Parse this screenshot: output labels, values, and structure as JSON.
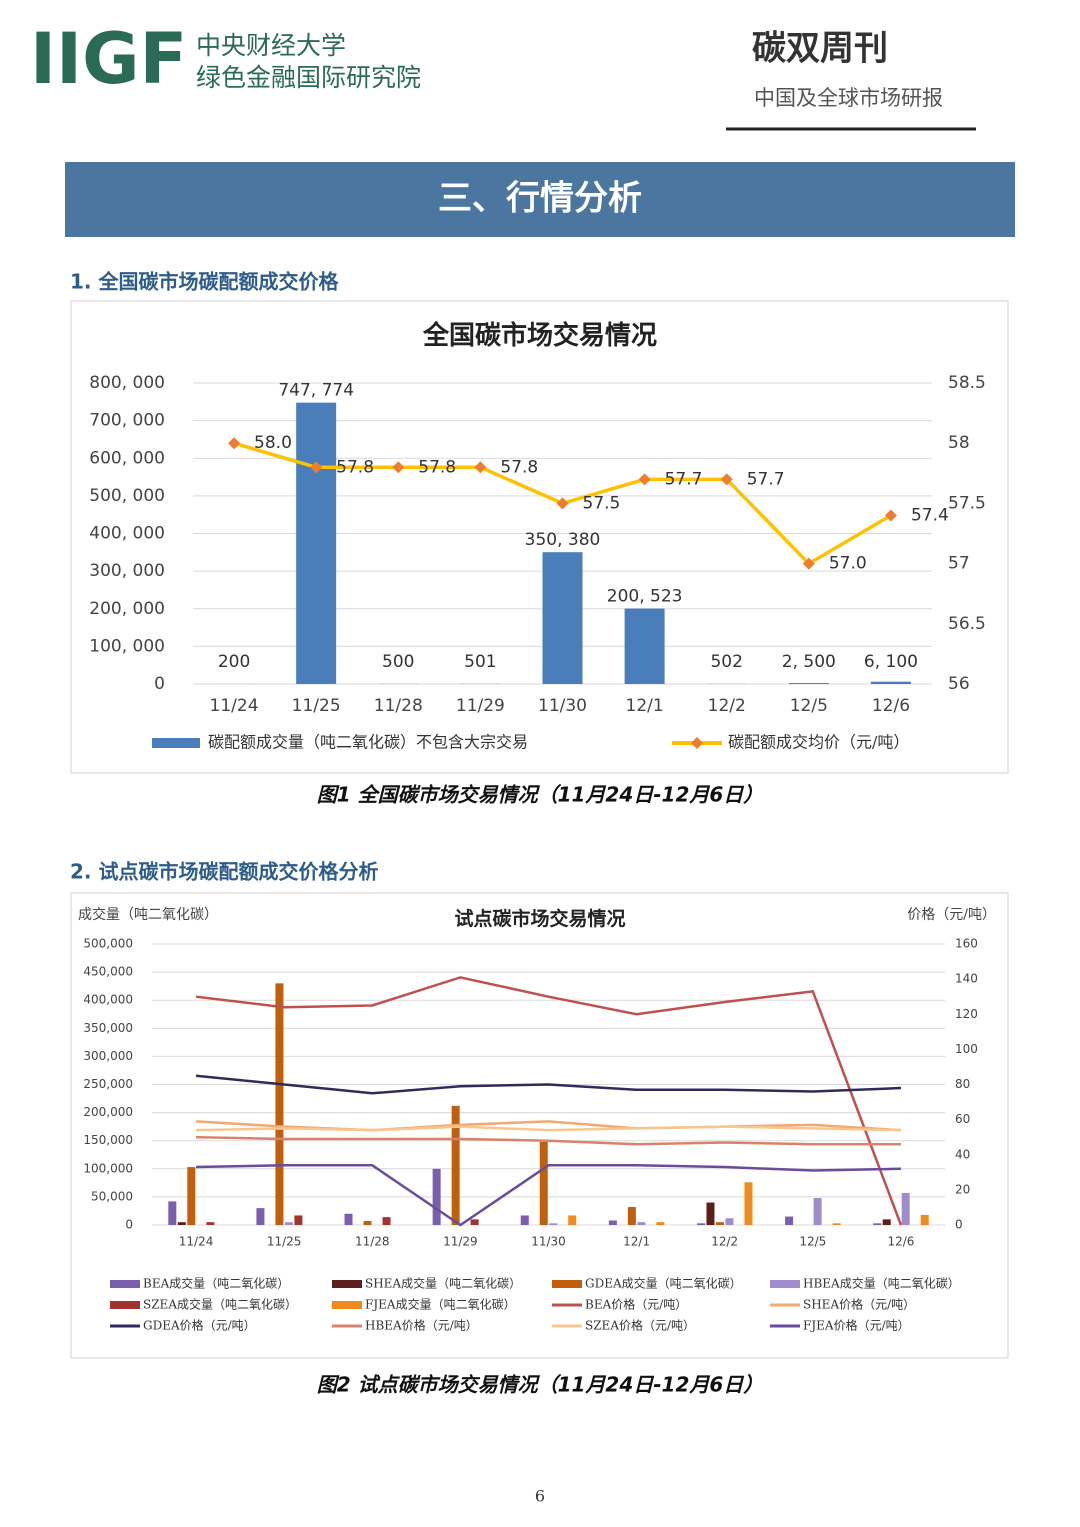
{
  "header": {
    "logo": "IIGF",
    "org_line1": "中央财经大学",
    "org_line2": "绿色金融国际研究院",
    "pub_title": "碳双周刊",
    "pub_subtitle": "中国及全球市场研报"
  },
  "section": {
    "title": "三、行情分析",
    "sub1": "1. 全国碳市场碳配额成交价格",
    "caption1": "图1 全国碳市场交易情况（11月24日-12月6日）",
    "sub2": "2. 试点碳市场碳配额成交价格分析",
    "caption2": "图2 试点碳市场交易情况（11月24日-12月6日）"
  },
  "page_number": "6",
  "chart_data": [
    {
      "type": "combo",
      "title": "全国碳市场交易情况",
      "categories": [
        "11/24",
        "11/25",
        "11/28",
        "11/29",
        "11/30",
        "12/1",
        "12/2",
        "12/5",
        "12/6"
      ],
      "series": [
        {
          "name": "碳配额成交量（吨二氧化碳）不包含大宗交易",
          "type": "bar",
          "color": "#4a7ebb",
          "values": [
            200,
            747774,
            500,
            501,
            350380,
            200523,
            502,
            2500,
            6100
          ],
          "value_labels": [
            "200",
            "747, 774",
            "500",
            "501",
            "350, 380",
            "200, 523",
            "502",
            "2, 500",
            "6, 100"
          ]
        },
        {
          "name": "碳配额成交均价（元/吨）",
          "type": "line",
          "axis": "y2",
          "color": "#ffc000",
          "marker_color": "#ed7d31",
          "values": [
            58.0,
            57.8,
            57.8,
            57.8,
            57.5,
            57.7,
            57.7,
            57.0,
            57.4
          ],
          "value_labels": [
            "58.0",
            "57.8",
            "57.8",
            "57.8",
            "57.5",
            "57.7",
            "57.7",
            "57.0",
            "57.4"
          ]
        }
      ],
      "ylim": [
        0,
        800000
      ],
      "yticks": [
        0,
        {
          "value": 100000,
          "label": "100, 000"
        },
        {
          "value": 200000,
          "label": "200, 000"
        },
        {
          "value": 300000,
          "label": "300, 000"
        },
        {
          "value": 400000,
          "label": "400, 000"
        },
        {
          "value": 500000,
          "label": "500, 000"
        },
        {
          "value": 600000,
          "label": "600, 000"
        },
        {
          "value": 700000,
          "label": "700, 000"
        },
        {
          "value": 800000,
          "label": "800, 000"
        }
      ],
      "y2lim": [
        56,
        58.5
      ],
      "y2ticks": [
        56,
        56.5,
        57,
        57.5,
        58,
        58.5
      ],
      "grid": true
    },
    {
      "type": "combo",
      "title": "试点碳市场交易情况",
      "y_label": "成交量（吨二氧化碳）",
      "y2_label": "价格（元/吨）",
      "categories": [
        "11/24",
        "11/25",
        "11/28",
        "11/29",
        "11/30",
        "12/1",
        "12/2",
        "12/5",
        "12/6"
      ],
      "series": [
        {
          "name": "BEA成交量（吨二氧化碳）",
          "type": "bar",
          "color": "#7b5fae",
          "values": [
            42000,
            30000,
            20000,
            100000,
            17000,
            8000,
            3000,
            15000,
            3000
          ]
        },
        {
          "name": "SHEA成交量（吨二氧化碳）",
          "type": "bar",
          "color": "#5c1f1c",
          "values": [
            5000,
            0,
            0,
            0,
            0,
            0,
            40000,
            0,
            10000
          ]
        },
        {
          "name": "GDEA成交量（吨二氧化碳）",
          "type": "bar",
          "color": "#c0600f",
          "values": [
            103000,
            430000,
            7000,
            212000,
            148000,
            32000,
            5000,
            0,
            0
          ]
        },
        {
          "name": "HBEA成交量（吨二氧化碳）",
          "type": "bar",
          "color": "#a08bcc",
          "values": [
            0,
            5000,
            0,
            0,
            3000,
            5000,
            12000,
            48000,
            57000
          ]
        },
        {
          "name": "SZEA成交量（吨二氧化碳）",
          "type": "bar",
          "color": "#a3332e",
          "values": [
            5000,
            17000,
            14000,
            10000,
            0,
            0,
            0,
            0,
            0
          ]
        },
        {
          "name": "FJEA成交量（吨二氧化碳）",
          "type": "bar",
          "color": "#f08a1c",
          "values": [
            0,
            0,
            0,
            0,
            17000,
            5000,
            76000,
            3000,
            18000
          ]
        },
        {
          "name": "BEA价格（元/吨）",
          "type": "line",
          "axis": "y2",
          "color": "#c0504d",
          "values": [
            130,
            124,
            125,
            141,
            130,
            120,
            127,
            133,
            0
          ]
        },
        {
          "name": "SHEA价格（元/吨）",
          "type": "line",
          "axis": "y2",
          "color": "#f4a870",
          "values": [
            59,
            56,
            54,
            57,
            59,
            55,
            56,
            57,
            54
          ]
        },
        {
          "name": "GDEA价格（元/吨）",
          "type": "line",
          "axis": "y2",
          "color": "#2f2b5c",
          "values": [
            85,
            80,
            75,
            79,
            80,
            77,
            77,
            76,
            78
          ]
        },
        {
          "name": "HBEA价格（元/吨）",
          "type": "line",
          "axis": "y2",
          "color": "#d9826b",
          "values": [
            50,
            49,
            49,
            49,
            48,
            46,
            47,
            46,
            46
          ]
        },
        {
          "name": "SZEA价格（元/吨）",
          "type": "line",
          "axis": "y2",
          "color": "#f8c68e",
          "values": [
            54,
            55,
            54,
            56,
            54,
            55,
            56,
            55,
            54
          ]
        },
        {
          "name": "FJEA价格（元/吨）",
          "type": "line",
          "axis": "y2",
          "color": "#6a4c9c",
          "values": [
            33,
            34,
            34,
            0,
            34,
            34,
            33,
            31,
            32
          ]
        }
      ],
      "ylim": [
        0,
        500000
      ],
      "yticks": [
        0,
        {
          "value": 50000,
          "label": "50,000"
        },
        {
          "value": 100000,
          "label": "100,000"
        },
        {
          "value": 150000,
          "label": "150,000"
        },
        {
          "value": 200000,
          "label": "200,000"
        },
        {
          "value": 250000,
          "label": "250,000"
        },
        {
          "value": 300000,
          "label": "300,000"
        },
        {
          "value": 350000,
          "label": "350,000"
        },
        {
          "value": 400000,
          "label": "400,000"
        },
        {
          "value": 450000,
          "label": "450,000"
        },
        {
          "value": 500000,
          "label": "500,000"
        }
      ],
      "y2lim": [
        0,
        160
      ],
      "y2ticks": [
        0,
        20,
        40,
        60,
        80,
        100,
        120,
        140,
        160
      ],
      "grid": true
    }
  ]
}
